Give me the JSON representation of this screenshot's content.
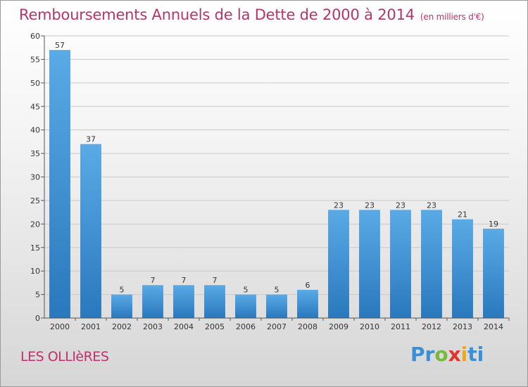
{
  "header": {
    "title": "Remboursements Annuels de la Dette de 2000 à 2014",
    "subtitle": "(en milliers d'€)"
  },
  "footer": {
    "commune": "LES OLLIèRES",
    "logo_letters": [
      "P",
      "r",
      "o",
      "x",
      "i",
      "ti"
    ]
  },
  "colors": {
    "bar_top": "#5aaae6",
    "bar_bottom": "#2a78bd",
    "title": "#b8336a",
    "grid": "#c9c9c9"
  },
  "chart_data": {
    "type": "bar",
    "title": "Remboursements Annuels de la Dette de 2000 à 2014",
    "subtitle": "(en milliers d'€)",
    "xlabel": "",
    "ylabel": "",
    "categories": [
      "2000",
      "2001",
      "2002",
      "2003",
      "2004",
      "2005",
      "2006",
      "2007",
      "2008",
      "2009",
      "2010",
      "2011",
      "2012",
      "2013",
      "2014"
    ],
    "values": [
      57,
      37,
      5,
      7,
      7,
      7,
      5,
      5,
      6,
      23,
      23,
      23,
      23,
      21,
      19
    ],
    "ylim": [
      0,
      60
    ],
    "yticks": [
      0,
      5,
      10,
      15,
      20,
      25,
      30,
      35,
      40,
      45,
      50,
      55,
      60
    ],
    "grid": true,
    "data_labels": true
  }
}
